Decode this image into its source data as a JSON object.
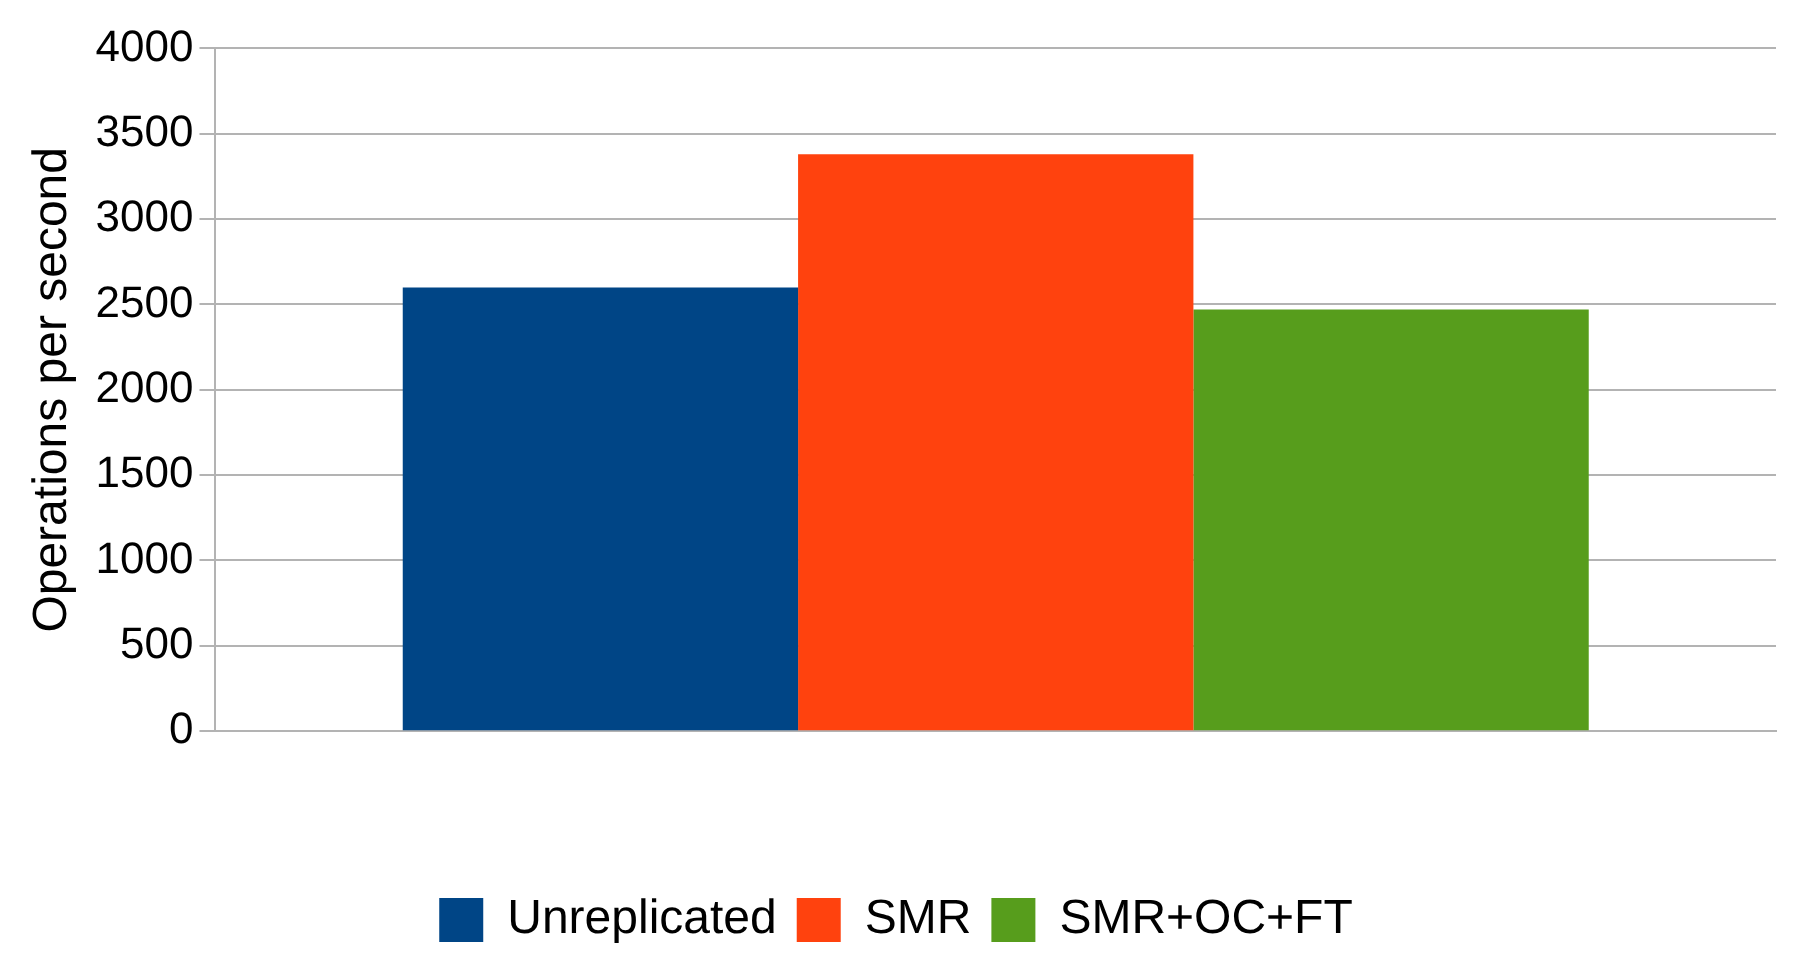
{
  "chart_data": {
    "type": "bar",
    "ylabel": "Operations per second",
    "categories": [
      null
    ],
    "series": [
      {
        "name": "Unreplicated",
        "color": "#004586",
        "values": [
          2600
        ]
      },
      {
        "name": "SMR",
        "color": "#ff420e",
        "values": [
          3380
        ]
      },
      {
        "name": "SMR+OC+FT",
        "color": "#579d1c",
        "values": [
          2470
        ]
      }
    ],
    "ylim": [
      0,
      4000
    ],
    "yticks": [
      0,
      500,
      1000,
      1500,
      2000,
      2500,
      3000,
      3500,
      4000
    ],
    "grid": "y",
    "legend": "bottom"
  }
}
